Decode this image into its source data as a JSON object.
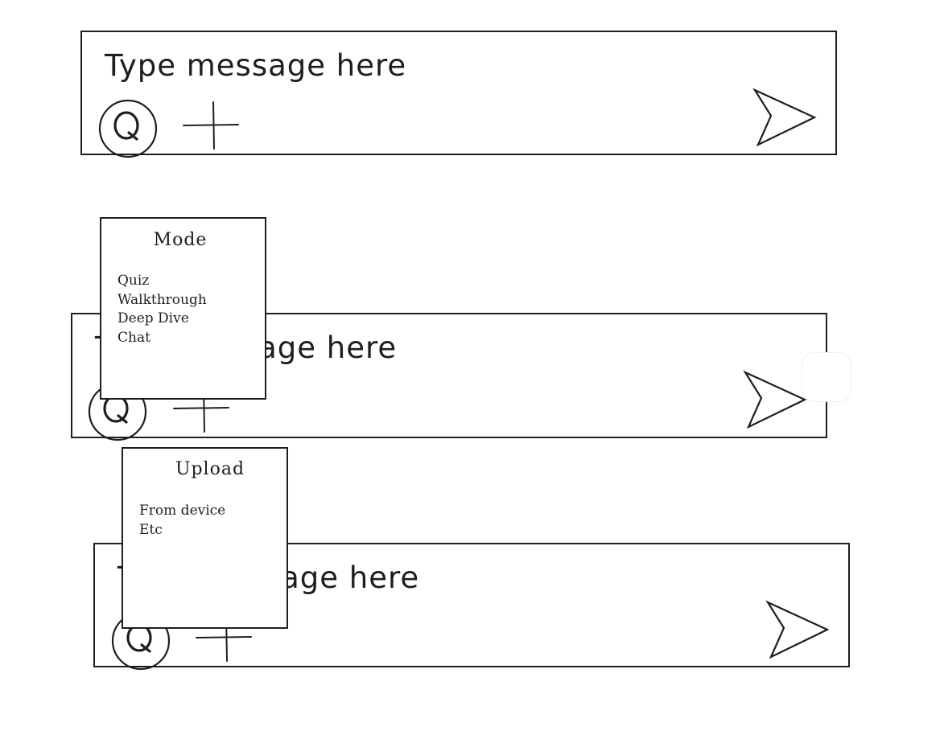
{
  "composer_top": {
    "placeholder": "Type message here"
  },
  "composer_middle": {
    "placeholder": "Type message here"
  },
  "composer_bottom": {
    "placeholder": "Type message here"
  },
  "mode_menu": {
    "title": "Mode",
    "items": [
      "Quiz",
      "Walkthrough",
      "Deep Dive",
      "Chat"
    ]
  },
  "upload_menu": {
    "title": "Upload",
    "items": [
      "From device",
      "Etc"
    ]
  },
  "icons": {
    "mode": "q-circle-icon",
    "add": "plus-icon",
    "send": "send-arrow-icon"
  },
  "colors": {
    "stroke": "#1e1e1e",
    "background": "#ffffff"
  }
}
